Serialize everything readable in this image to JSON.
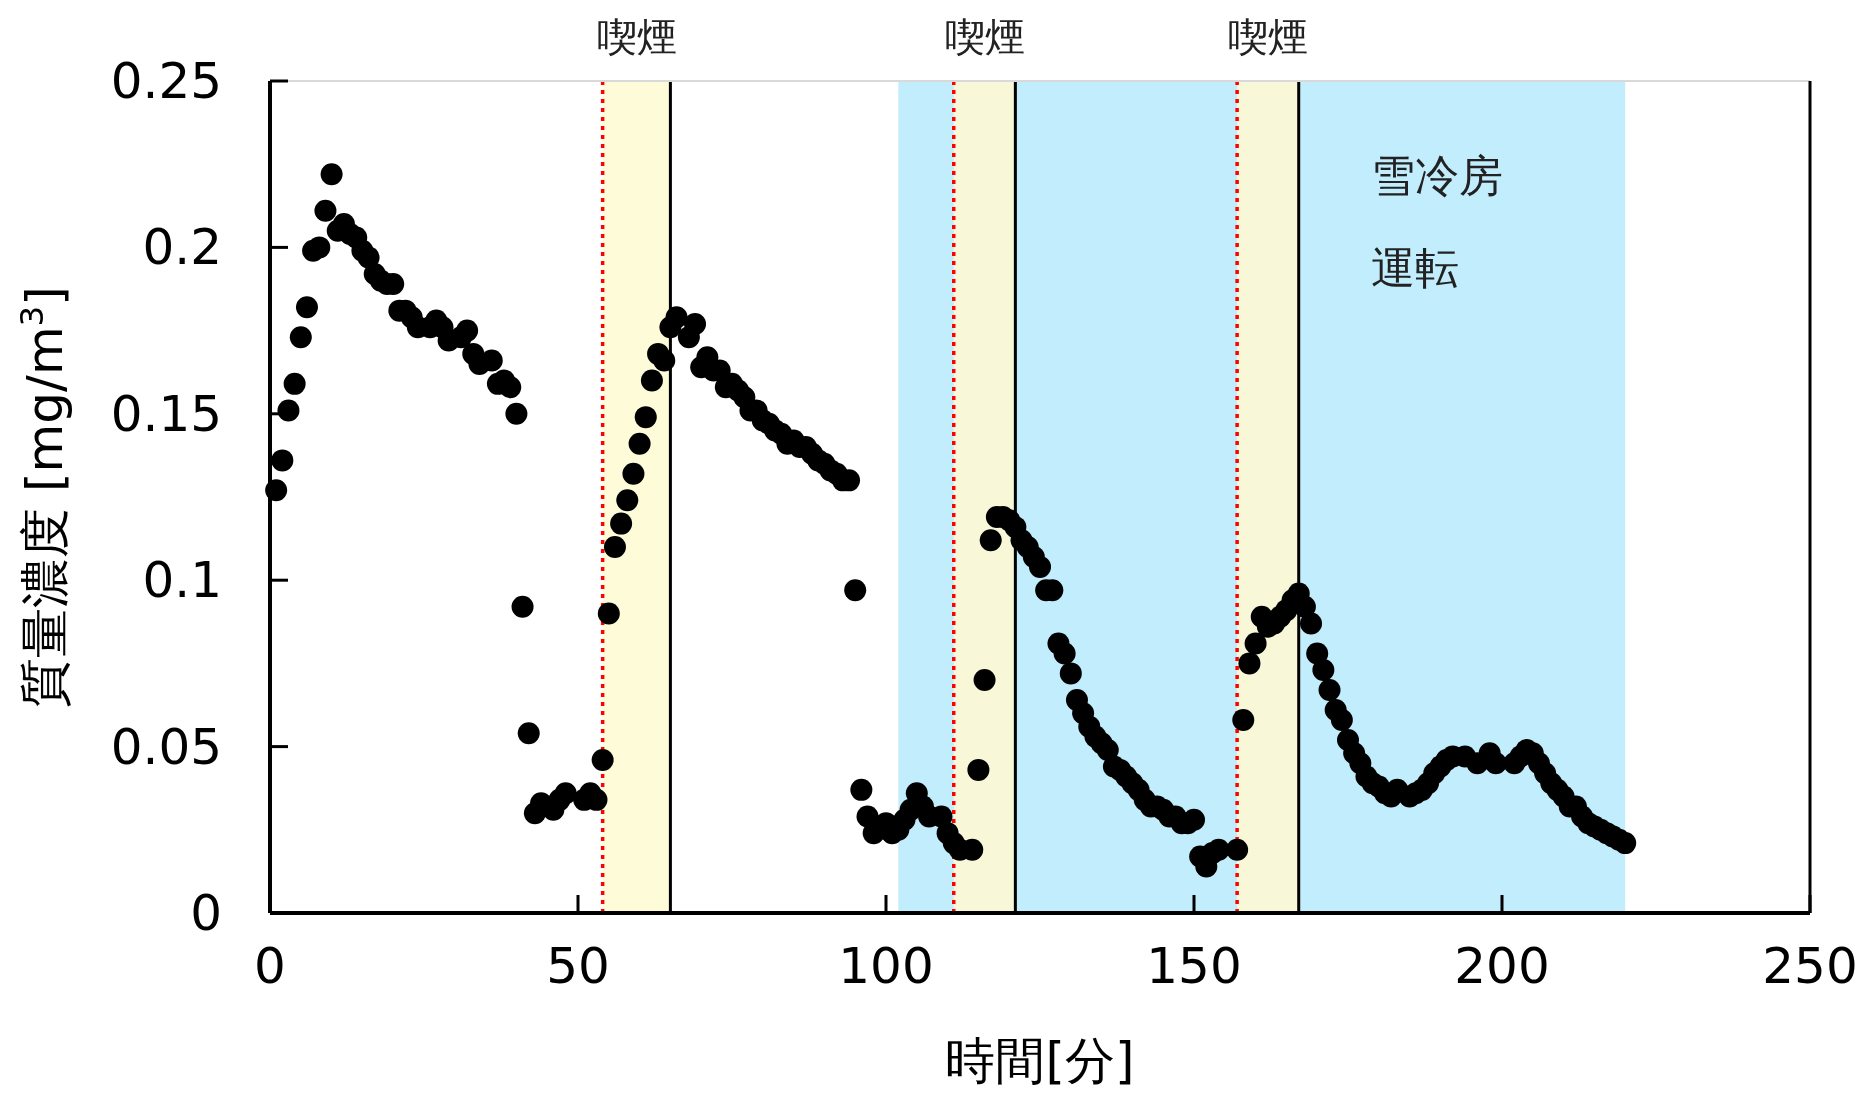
{
  "chart_data": {
    "type": "scatter",
    "xlabel": "時間[分]",
    "ylabel": "質量濃度 [mg/m$^{3}$]",
    "xlim": [
      0,
      250
    ],
    "xticks": [
      0,
      50,
      100,
      150,
      200,
      250
    ],
    "ylim": [
      0,
      0.25
    ],
    "yticks": [
      0,
      0.05,
      0.1,
      0.15,
      0.2,
      0.25
    ],
    "marker": "circle",
    "bands": [
      {
        "axis": "x",
        "from": 102,
        "to": 220,
        "label": "雪冷房運転",
        "color": "#c1edfd"
      },
      {
        "axis": "x",
        "from": 54,
        "to": 65,
        "label": "喫煙",
        "color": "#fdfbd8"
      },
      {
        "axis": "x",
        "from": 111,
        "to": 121,
        "label": "喫煙",
        "color": "#f8f8d8"
      },
      {
        "axis": "x",
        "from": 157,
        "to": 167,
        "label": "喫煙",
        "color": "#f8f8d8"
      }
    ],
    "ref_lines": [
      {
        "axis": "x",
        "value": 54,
        "color": "#ff0000",
        "line_style": "dotted"
      },
      {
        "axis": "x",
        "value": 65,
        "color": "#000000",
        "line_style": "solid"
      },
      {
        "axis": "x",
        "value": 111,
        "color": "#ff0000",
        "line_style": "dotted"
      },
      {
        "axis": "x",
        "value": 121,
        "color": "#000000",
        "line_style": "solid"
      },
      {
        "axis": "x",
        "value": 157,
        "color": "#ff0000",
        "line_style": "dotted"
      },
      {
        "axis": "x",
        "value": 167,
        "color": "#000000",
        "line_style": "solid"
      }
    ],
    "series": [
      {
        "color": "#000000",
        "x": [
          1,
          2,
          3,
          4,
          5,
          6,
          7,
          8,
          9,
          10,
          11,
          12,
          13,
          14,
          15,
          16,
          17,
          18,
          19,
          20,
          21,
          22,
          23,
          24,
          26,
          27,
          28,
          29,
          31,
          32,
          33,
          34,
          36,
          37,
          38,
          39,
          40,
          41,
          42,
          43,
          44,
          46,
          47,
          48,
          51,
          52,
          53,
          54,
          55,
          56,
          57,
          58,
          59,
          60,
          61,
          62,
          63,
          64,
          65,
          66,
          68,
          69,
          70,
          71,
          72,
          73,
          74,
          75,
          76,
          77,
          78,
          79,
          80,
          81,
          82,
          83,
          84,
          85,
          86,
          87,
          88,
          89,
          90,
          91,
          92,
          93,
          94,
          95,
          96,
          97,
          98,
          100,
          101,
          102,
          103,
          104,
          105,
          106,
          107,
          109,
          110,
          111,
          112,
          114,
          115,
          116,
          117,
          118,
          119,
          120,
          121,
          122,
          123,
          124,
          125,
          126,
          127,
          128,
          129,
          130,
          131,
          132,
          133,
          134,
          135,
          136,
          137,
          138,
          139,
          140,
          141,
          142,
          143,
          144,
          145,
          146,
          147,
          148,
          149,
          150,
          151,
          152,
          153,
          154,
          157,
          158,
          159,
          160,
          161,
          162,
          163,
          164,
          165,
          166,
          167,
          168,
          169,
          170,
          171,
          172,
          173,
          174,
          175,
          176,
          177,
          178,
          179,
          180,
          181,
          182,
          183,
          185,
          186,
          187,
          188,
          189,
          190,
          191,
          192,
          194,
          196,
          198,
          199,
          202,
          203,
          204,
          205,
          206,
          207,
          208,
          209,
          210,
          211,
          212,
          213,
          214,
          215,
          216,
          217,
          218,
          219,
          220
        ],
        "values": [
          0.127,
          0.136,
          0.151,
          0.159,
          0.173,
          0.182,
          0.199,
          0.2,
          0.211,
          0.222,
          0.205,
          0.207,
          0.204,
          0.203,
          0.199,
          0.197,
          0.192,
          0.19,
          0.189,
          0.189,
          0.181,
          0.181,
          0.179,
          0.176,
          0.176,
          0.178,
          0.176,
          0.172,
          0.173,
          0.175,
          0.168,
          0.165,
          0.166,
          0.159,
          0.16,
          0.158,
          0.15,
          0.092,
          0.054,
          0.03,
          0.033,
          0.031,
          0.034,
          0.036,
          0.034,
          0.036,
          0.034,
          0.046,
          0.09,
          0.11,
          0.117,
          0.124,
          0.132,
          0.141,
          0.149,
          0.16,
          0.168,
          0.166,
          0.176,
          0.179,
          0.173,
          0.177,
          0.164,
          0.167,
          0.163,
          0.163,
          0.158,
          0.159,
          0.157,
          0.155,
          0.151,
          0.151,
          0.148,
          0.147,
          0.145,
          0.144,
          0.141,
          0.142,
          0.14,
          0.14,
          0.138,
          0.136,
          0.135,
          0.133,
          0.132,
          0.13,
          0.13,
          0.097,
          0.037,
          0.029,
          0.024,
          0.027,
          0.024,
          0.025,
          0.028,
          0.031,
          0.036,
          0.032,
          0.029,
          0.029,
          0.024,
          0.021,
          0.019,
          0.019,
          0.043,
          0.07,
          0.112,
          0.119,
          0.119,
          0.118,
          0.116,
          0.112,
          0.11,
          0.107,
          0.104,
          0.097,
          0.097,
          0.081,
          0.078,
          0.072,
          0.064,
          0.06,
          0.056,
          0.053,
          0.051,
          0.049,
          0.044,
          0.043,
          0.041,
          0.039,
          0.037,
          0.034,
          0.032,
          0.032,
          0.031,
          0.029,
          0.029,
          0.027,
          0.027,
          0.028,
          0.017,
          0.014,
          0.018,
          0.019,
          0.019,
          0.058,
          0.075,
          0.081,
          0.089,
          0.086,
          0.087,
          0.089,
          0.091,
          0.094,
          0.096,
          0.092,
          0.087,
          0.078,
          0.073,
          0.067,
          0.061,
          0.058,
          0.052,
          0.048,
          0.045,
          0.041,
          0.039,
          0.038,
          0.036,
          0.035,
          0.037,
          0.035,
          0.036,
          0.037,
          0.039,
          0.042,
          0.044,
          0.046,
          0.047,
          0.047,
          0.045,
          0.048,
          0.045,
          0.045,
          0.047,
          0.049,
          0.048,
          0.045,
          0.042,
          0.039,
          0.037,
          0.035,
          0.032,
          0.032,
          0.029,
          0.027,
          0.026,
          0.025,
          0.024,
          0.023,
          0.022,
          0.021
        ]
      }
    ]
  }
}
